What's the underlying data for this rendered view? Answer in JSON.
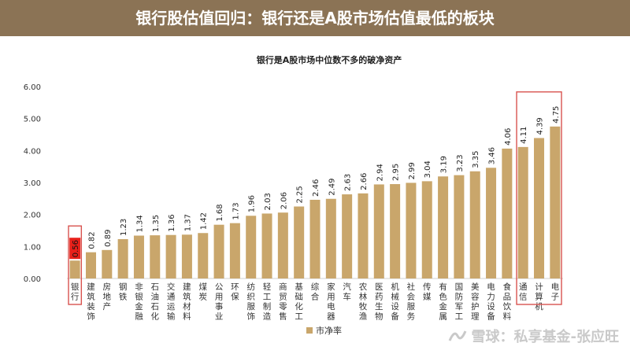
{
  "header": {
    "title": "银行股估值回归：银行还是A股市场估值最低的板块"
  },
  "watermark": {
    "text": "雪球：私享基金-张应旺"
  },
  "colors": {
    "header_bg": "#8b7355",
    "bar": "#c9a66b",
    "bar_highlight": "#e8201a",
    "box": "#d9534f"
  },
  "chart_data": {
    "type": "bar",
    "title": "银行是A股市场中位数不多的破净资产",
    "categories": [
      "银行",
      "建筑装饰",
      "房地产",
      "钢铁",
      "非银金融",
      "石油石化",
      "交通运输",
      "建筑材料",
      "煤炭",
      "公用事业",
      "环保",
      "纺织服饰",
      "轻工制造",
      "商贸零售",
      "基础化工",
      "综合",
      "家用电器",
      "汽车",
      "农林牧渔",
      "医药生物",
      "机械设备",
      "社会服务",
      "传媒",
      "有色金属",
      "国防军工",
      "美容护理",
      "电力设备",
      "食品饮料",
      "通信",
      "计算机",
      "电子"
    ],
    "series": [
      {
        "name": "市净率",
        "values": [
          0.56,
          0.82,
          0.89,
          1.23,
          1.34,
          1.35,
          1.36,
          1.37,
          1.42,
          1.68,
          1.73,
          1.96,
          2.03,
          2.06,
          2.25,
          2.46,
          2.49,
          2.63,
          2.66,
          2.94,
          2.95,
          2.99,
          3.04,
          3.19,
          3.23,
          3.35,
          3.46,
          4.06,
          4.11,
          4.39,
          4.75
        ]
      }
    ],
    "value_labels": [
      "0.56",
      "0.82",
      "0.89",
      "1.23",
      "1.34",
      "1.35",
      "1.36",
      "1.37",
      "1.42",
      "1.68",
      "1.73",
      "1.96",
      "2.03",
      "2.06",
      "2.25",
      "2.46",
      "2.49",
      "2.63",
      "2.66",
      "2.94",
      "2.95",
      "2.99",
      "3.04",
      "3.19",
      "3.23",
      "3.35",
      "3.46",
      "4.06",
      "4.11",
      "4.39",
      "4.75"
    ],
    "yticks": [
      "0.00",
      "1.00",
      "2.00",
      "3.00",
      "4.00",
      "5.00",
      "6.00"
    ],
    "ylim": [
      0,
      6
    ],
    "legend": {
      "position": "bottom-center",
      "label": "市净率"
    },
    "highlight_index": 0,
    "boxed_ranges": [
      [
        0,
        0
      ],
      [
        28,
        30
      ]
    ]
  }
}
